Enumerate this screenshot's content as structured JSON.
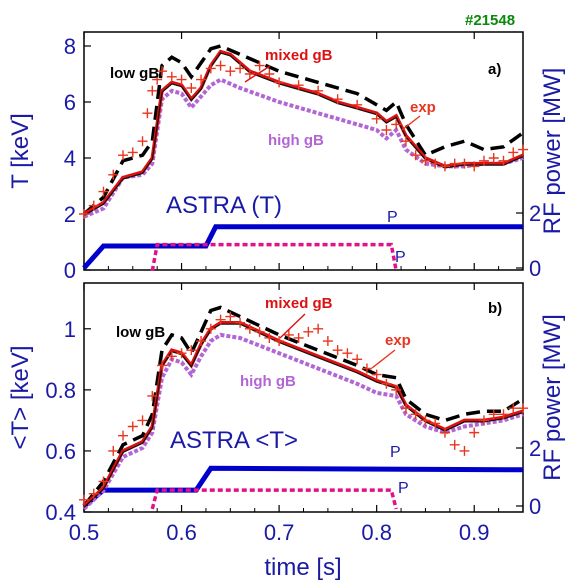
{
  "shot_label": "#21548",
  "colors": {
    "axis": "#1a1aa6",
    "exp": "#e8361f",
    "mixed": "#dd1111",
    "low": "#000000",
    "high": "#b266d6",
    "p_lh": "#0000cc",
    "p_ech": "#e0118a",
    "shot": "#0a8a0a"
  },
  "x_axis": {
    "label": "time [s]",
    "ticks": [
      "0.5",
      "0.6",
      "0.7",
      "0.8",
      "0.9"
    ]
  },
  "chart_data": [
    {
      "type": "line",
      "panel": "a)",
      "ylabel": "T<sub>e0</sub> [keV]",
      "ylabel_right": "RF power [MW]",
      "title_in_plot": "ASTRA (T<sub>e0</sub>)",
      "ylim": [
        0,
        8.5
      ],
      "yticks": [
        "0",
        "2",
        "4",
        "6",
        "8"
      ],
      "y2ticks": [
        "0",
        "2"
      ],
      "xlim": [
        0.5,
        0.95
      ],
      "annotations": {
        "low": "low gB",
        "mixed": "mixed gB",
        "high": "high gB",
        "exp": "exp",
        "plh": "P<sub>LH</sub>",
        "pech": "P<sub>ECH</sub>"
      },
      "series": {
        "exp": [
          [
            0.5,
            2.0
          ],
          [
            0.51,
            2.3
          ],
          [
            0.52,
            2.8
          ],
          [
            0.53,
            3.4
          ],
          [
            0.54,
            4.1
          ],
          [
            0.55,
            4.2
          ],
          [
            0.56,
            4.6
          ],
          [
            0.565,
            5.6
          ],
          [
            0.57,
            6.4
          ],
          [
            0.575,
            6.8
          ],
          [
            0.58,
            7.1
          ],
          [
            0.59,
            6.9
          ],
          [
            0.6,
            6.8
          ],
          [
            0.61,
            6.5
          ],
          [
            0.62,
            6.8
          ],
          [
            0.63,
            7.2
          ],
          [
            0.64,
            7.3
          ],
          [
            0.65,
            7.1
          ],
          [
            0.66,
            7.2
          ],
          [
            0.67,
            7.0
          ],
          [
            0.68,
            7.3
          ],
          [
            0.69,
            7.0
          ],
          [
            0.7,
            6.7
          ],
          [
            0.72,
            6.6
          ],
          [
            0.74,
            6.4
          ],
          [
            0.76,
            6.1
          ],
          [
            0.78,
            5.9
          ],
          [
            0.8,
            5.4
          ],
          [
            0.81,
            5.0
          ],
          [
            0.82,
            5.2
          ],
          [
            0.83,
            4.6
          ],
          [
            0.84,
            4.1
          ],
          [
            0.85,
            3.9
          ],
          [
            0.86,
            3.8
          ],
          [
            0.87,
            3.7
          ],
          [
            0.88,
            3.8
          ],
          [
            0.89,
            3.8
          ],
          [
            0.9,
            3.7
          ],
          [
            0.91,
            3.9
          ],
          [
            0.92,
            4.0
          ],
          [
            0.93,
            3.9
          ],
          [
            0.94,
            4.2
          ],
          [
            0.95,
            4.3
          ]
        ],
        "mixed": [
          [
            0.5,
            2.0
          ],
          [
            0.52,
            2.4
          ],
          [
            0.54,
            3.3
          ],
          [
            0.56,
            3.5
          ],
          [
            0.57,
            4.0
          ],
          [
            0.58,
            6.4
          ],
          [
            0.59,
            6.7
          ],
          [
            0.6,
            6.6
          ],
          [
            0.61,
            6.1
          ],
          [
            0.62,
            6.5
          ],
          [
            0.63,
            7.3
          ],
          [
            0.64,
            7.8
          ],
          [
            0.65,
            7.7
          ],
          [
            0.67,
            7.1
          ],
          [
            0.7,
            6.7
          ],
          [
            0.72,
            6.5
          ],
          [
            0.74,
            6.3
          ],
          [
            0.76,
            6.0
          ],
          [
            0.78,
            5.8
          ],
          [
            0.8,
            5.6
          ],
          [
            0.81,
            5.3
          ],
          [
            0.82,
            5.5
          ],
          [
            0.83,
            4.8
          ],
          [
            0.85,
            4.0
          ],
          [
            0.87,
            3.7
          ],
          [
            0.89,
            3.8
          ],
          [
            0.91,
            3.8
          ],
          [
            0.93,
            3.8
          ],
          [
            0.95,
            4.1
          ]
        ],
        "low": [
          [
            0.5,
            2.0
          ],
          [
            0.52,
            2.6
          ],
          [
            0.54,
            3.9
          ],
          [
            0.56,
            4.1
          ],
          [
            0.57,
            4.6
          ],
          [
            0.58,
            7.3
          ],
          [
            0.59,
            7.6
          ],
          [
            0.6,
            7.4
          ],
          [
            0.61,
            6.9
          ],
          [
            0.62,
            7.4
          ],
          [
            0.63,
            7.9
          ],
          [
            0.64,
            8.0
          ],
          [
            0.66,
            7.7
          ],
          [
            0.7,
            7.1
          ],
          [
            0.74,
            6.7
          ],
          [
            0.78,
            6.3
          ],
          [
            0.8,
            5.9
          ],
          [
            0.81,
            5.7
          ],
          [
            0.82,
            6.0
          ],
          [
            0.83,
            5.2
          ],
          [
            0.85,
            4.1
          ],
          [
            0.87,
            4.4
          ],
          [
            0.89,
            4.6
          ],
          [
            0.91,
            4.3
          ],
          [
            0.93,
            4.4
          ],
          [
            0.95,
            4.9
          ]
        ],
        "high": [
          [
            0.5,
            1.9
          ],
          [
            0.52,
            2.2
          ],
          [
            0.54,
            3.3
          ],
          [
            0.56,
            3.4
          ],
          [
            0.57,
            3.8
          ],
          [
            0.58,
            6.1
          ],
          [
            0.59,
            6.4
          ],
          [
            0.6,
            6.3
          ],
          [
            0.61,
            5.8
          ],
          [
            0.62,
            6.2
          ],
          [
            0.63,
            6.6
          ],
          [
            0.64,
            6.8
          ],
          [
            0.66,
            6.5
          ],
          [
            0.7,
            6.0
          ],
          [
            0.74,
            5.6
          ],
          [
            0.78,
            5.2
          ],
          [
            0.8,
            5.0
          ],
          [
            0.81,
            4.7
          ],
          [
            0.82,
            5.0
          ],
          [
            0.83,
            4.3
          ],
          [
            0.85,
            3.8
          ],
          [
            0.87,
            3.7
          ],
          [
            0.89,
            3.7
          ],
          [
            0.91,
            3.8
          ],
          [
            0.93,
            3.8
          ],
          [
            0.95,
            4.0
          ]
        ],
        "p_lh": [
          [
            0.5,
            0.0
          ],
          [
            0.52,
            0.8
          ],
          [
            0.625,
            0.8
          ],
          [
            0.635,
            1.5
          ],
          [
            0.95,
            1.5
          ]
        ],
        "p_ech": [
          [
            0.57,
            -0.1
          ],
          [
            0.575,
            0.85
          ],
          [
            0.815,
            0.85
          ],
          [
            0.82,
            -0.1
          ]
        ]
      }
    },
    {
      "type": "line",
      "panel": "b)",
      "ylabel": "&lt;T<sub>e</sub>&gt; [keV]",
      "ylabel_right": "RF power [MW]",
      "title_in_plot": "ASTRA &lt;T<sub>e</sub>&gt;",
      "ylim": [
        0.4,
        1.15
      ],
      "yticks": [
        "0.4",
        "0.6",
        "0.8",
        "1"
      ],
      "y2ticks": [
        "0",
        "2"
      ],
      "xlim": [
        0.5,
        0.95
      ],
      "annotations": {
        "low": "low gB",
        "mixed": "mixed gB",
        "high": "high gB",
        "exp": "exp",
        "plh": "P<sub>LH</sub>",
        "pech": "P<sub>ECH</sub>"
      },
      "series": {
        "exp": [
          [
            0.5,
            0.44
          ],
          [
            0.51,
            0.46
          ],
          [
            0.52,
            0.5
          ],
          [
            0.53,
            0.6
          ],
          [
            0.54,
            0.65
          ],
          [
            0.55,
            0.68
          ],
          [
            0.56,
            0.7
          ],
          [
            0.57,
            0.78
          ],
          [
            0.58,
            0.88
          ],
          [
            0.59,
            0.91
          ],
          [
            0.6,
            0.92
          ],
          [
            0.61,
            0.93
          ],
          [
            0.62,
            0.96
          ],
          [
            0.63,
            1.0
          ],
          [
            0.64,
            1.03
          ],
          [
            0.65,
            1.04
          ],
          [
            0.66,
            1.02
          ],
          [
            0.67,
            1.0
          ],
          [
            0.68,
            0.99
          ],
          [
            0.69,
            0.97
          ],
          [
            0.7,
            0.96
          ],
          [
            0.71,
            0.98
          ],
          [
            0.72,
            0.97
          ],
          [
            0.73,
            0.99
          ],
          [
            0.74,
            1.0
          ],
          [
            0.75,
            0.96
          ],
          [
            0.76,
            0.93
          ],
          [
            0.77,
            0.92
          ],
          [
            0.78,
            0.9
          ],
          [
            0.79,
            0.87
          ],
          [
            0.8,
            0.85
          ],
          [
            0.81,
            0.82
          ],
          [
            0.82,
            0.8
          ],
          [
            0.83,
            0.74
          ],
          [
            0.84,
            0.72
          ],
          [
            0.85,
            0.7
          ],
          [
            0.86,
            0.69
          ],
          [
            0.87,
            0.66
          ],
          [
            0.88,
            0.62
          ],
          [
            0.89,
            0.6
          ],
          [
            0.9,
            0.66
          ],
          [
            0.91,
            0.7
          ],
          [
            0.92,
            0.72
          ],
          [
            0.93,
            0.72
          ],
          [
            0.94,
            0.74
          ],
          [
            0.95,
            0.74
          ]
        ],
        "mixed": [
          [
            0.5,
            0.42
          ],
          [
            0.52,
            0.48
          ],
          [
            0.54,
            0.6
          ],
          [
            0.56,
            0.63
          ],
          [
            0.57,
            0.68
          ],
          [
            0.58,
            0.88
          ],
          [
            0.59,
            0.93
          ],
          [
            0.6,
            0.92
          ],
          [
            0.61,
            0.88
          ],
          [
            0.62,
            0.95
          ],
          [
            0.63,
            1.0
          ],
          [
            0.64,
            1.02
          ],
          [
            0.66,
            1.02
          ],
          [
            0.7,
            0.96
          ],
          [
            0.74,
            0.91
          ],
          [
            0.78,
            0.86
          ],
          [
            0.8,
            0.83
          ],
          [
            0.82,
            0.81
          ],
          [
            0.83,
            0.75
          ],
          [
            0.85,
            0.7
          ],
          [
            0.87,
            0.67
          ],
          [
            0.89,
            0.7
          ],
          [
            0.91,
            0.7
          ],
          [
            0.93,
            0.71
          ],
          [
            0.95,
            0.73
          ]
        ],
        "low": [
          [
            0.5,
            0.42
          ],
          [
            0.52,
            0.5
          ],
          [
            0.54,
            0.62
          ],
          [
            0.56,
            0.65
          ],
          [
            0.57,
            0.72
          ],
          [
            0.58,
            0.93
          ],
          [
            0.59,
            0.98
          ],
          [
            0.6,
            0.97
          ],
          [
            0.61,
            0.92
          ],
          [
            0.62,
            0.99
          ],
          [
            0.63,
            1.06
          ],
          [
            0.64,
            1.07
          ],
          [
            0.66,
            1.04
          ],
          [
            0.7,
            0.98
          ],
          [
            0.74,
            0.93
          ],
          [
            0.78,
            0.88
          ],
          [
            0.8,
            0.85
          ],
          [
            0.82,
            0.84
          ],
          [
            0.83,
            0.77
          ],
          [
            0.85,
            0.72
          ],
          [
            0.87,
            0.7
          ],
          [
            0.89,
            0.72
          ],
          [
            0.91,
            0.73
          ],
          [
            0.93,
            0.73
          ],
          [
            0.95,
            0.77
          ]
        ],
        "high": [
          [
            0.5,
            0.41
          ],
          [
            0.52,
            0.47
          ],
          [
            0.54,
            0.58
          ],
          [
            0.56,
            0.61
          ],
          [
            0.57,
            0.66
          ],
          [
            0.58,
            0.84
          ],
          [
            0.59,
            0.9
          ],
          [
            0.6,
            0.89
          ],
          [
            0.61,
            0.85
          ],
          [
            0.62,
            0.91
          ],
          [
            0.63,
            0.96
          ],
          [
            0.64,
            0.98
          ],
          [
            0.66,
            0.97
          ],
          [
            0.7,
            0.92
          ],
          [
            0.74,
            0.87
          ],
          [
            0.78,
            0.82
          ],
          [
            0.8,
            0.79
          ],
          [
            0.82,
            0.78
          ],
          [
            0.83,
            0.72
          ],
          [
            0.85,
            0.68
          ],
          [
            0.87,
            0.66
          ],
          [
            0.89,
            0.68
          ],
          [
            0.91,
            0.69
          ],
          [
            0.93,
            0.7
          ],
          [
            0.95,
            0.72
          ]
        ],
        "p_lh": [
          [
            0.5,
            0.0
          ],
          [
            0.52,
            0.55
          ],
          [
            0.615,
            0.55
          ],
          [
            0.63,
            1.3
          ],
          [
            0.95,
            1.25
          ]
        ],
        "p_ech": [
          [
            0.57,
            -0.1
          ],
          [
            0.575,
            0.55
          ],
          [
            0.815,
            0.55
          ],
          [
            0.82,
            -0.1
          ]
        ]
      }
    }
  ]
}
